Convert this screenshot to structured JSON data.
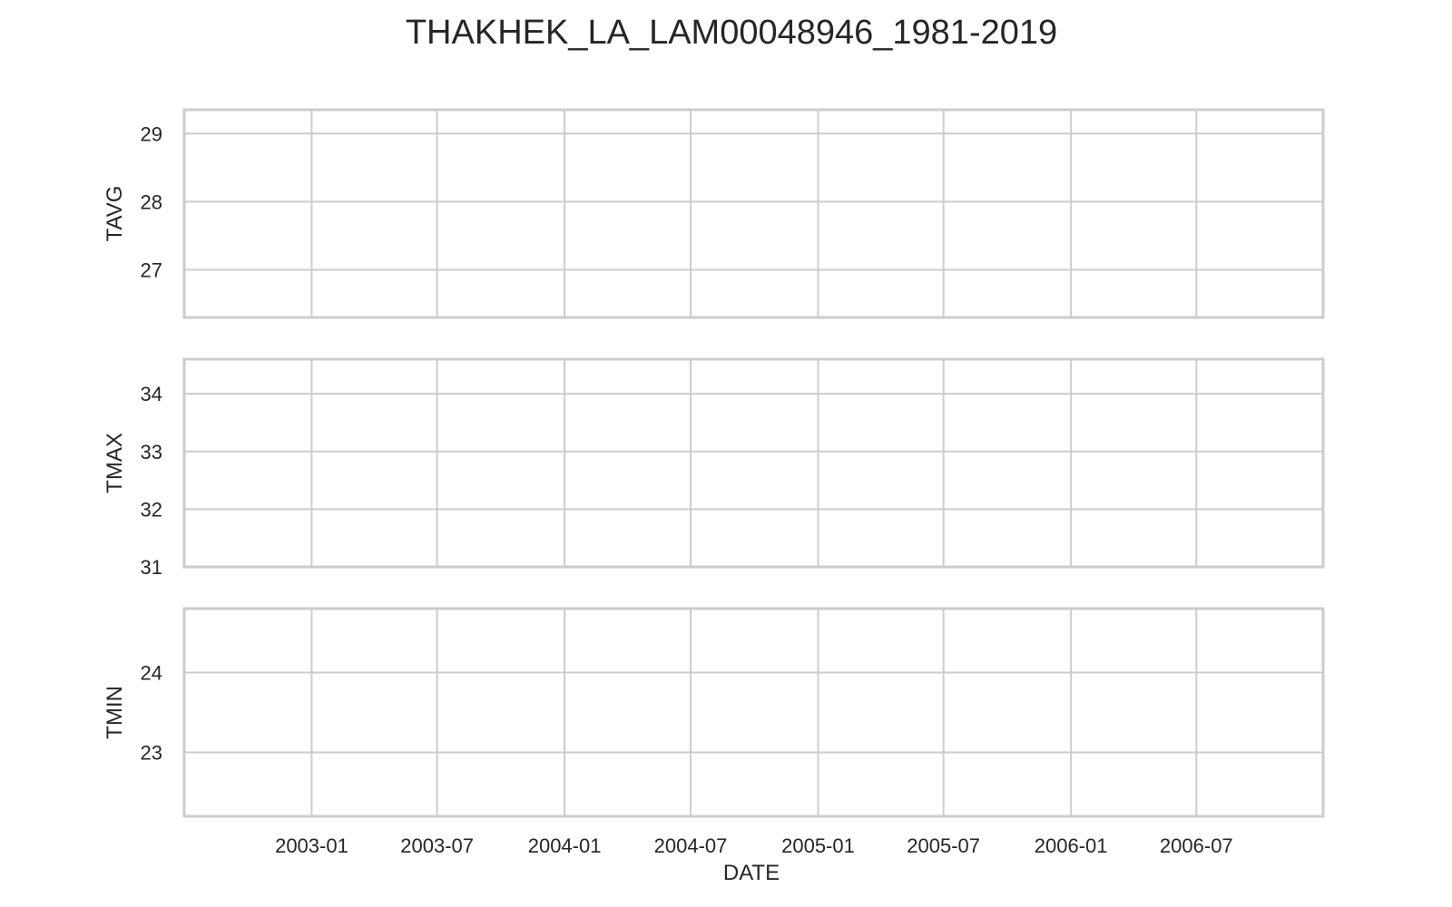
{
  "chart_data": {
    "type": "line",
    "title": "THAKHEK_LA_LAM00048946_1981-2019",
    "xlabel": "DATE",
    "x_ticks": [
      "2003-01",
      "2003-07",
      "2004-01",
      "2004-07",
      "2005-01",
      "2005-07",
      "2006-01",
      "2006-07"
    ],
    "xlim": [
      "2002-07-01",
      "2006-12-31"
    ],
    "grid": true,
    "colors": {
      "grid": "#cccccc",
      "frame": "#cccccc",
      "text": "#262626",
      "background": "#ffffff"
    },
    "subplots": [
      {
        "ylabel": "TAVG",
        "ylim": [
          26.3,
          29.35
        ],
        "y_ticks": [
          27,
          28,
          29
        ],
        "series": []
      },
      {
        "ylabel": "TMAX",
        "ylim": [
          31,
          34.6
        ],
        "y_ticks": [
          31,
          32,
          33,
          34
        ],
        "series": []
      },
      {
        "ylabel": "TMIN",
        "ylim": [
          22.2,
          24.8
        ],
        "y_ticks": [
          23,
          24
        ],
        "series": []
      }
    ]
  }
}
